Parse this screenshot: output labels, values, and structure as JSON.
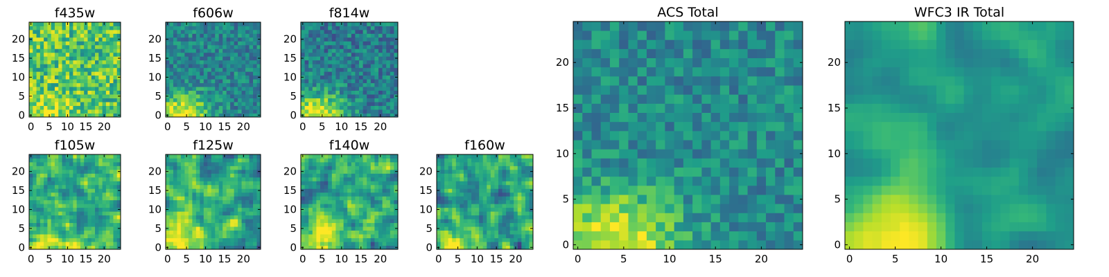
{
  "chart_data": [
    {
      "type": "heatmap",
      "title": "f435w",
      "grid": 25,
      "colormap": "viridis",
      "xticks": [
        "0",
        "5",
        "10",
        "15",
        "20"
      ],
      "yticks": [
        "0",
        "5",
        "10",
        "15",
        "20"
      ],
      "xlim": [
        0,
        24
      ],
      "ylim": [
        0,
        24
      ],
      "value_range": [
        0,
        1
      ],
      "pattern": {
        "seed": 11,
        "mean": 0.72,
        "noise": 0.5,
        "corner": 0.25,
        "smooth": 0
      }
    },
    {
      "type": "heatmap",
      "title": "f606w",
      "grid": 25,
      "colormap": "viridis",
      "xticks": [
        "0",
        "5",
        "10",
        "15",
        "20"
      ],
      "yticks": [
        "0",
        "5",
        "10",
        "15",
        "20"
      ],
      "xlim": [
        0,
        24
      ],
      "ylim": [
        0,
        24
      ],
      "value_range": [
        0,
        1
      ],
      "pattern": {
        "seed": 23,
        "mean": 0.45,
        "noise": 0.35,
        "corner": 0.55,
        "smooth": 0
      }
    },
    {
      "type": "heatmap",
      "title": "f814w",
      "grid": 25,
      "colormap": "viridis",
      "xticks": [
        "0",
        "5",
        "10",
        "15",
        "20"
      ],
      "yticks": [
        "0",
        "5",
        "10",
        "15",
        "20"
      ],
      "xlim": [
        0,
        24
      ],
      "ylim": [
        0,
        24
      ],
      "value_range": [
        0,
        1
      ],
      "pattern": {
        "seed": 37,
        "mean": 0.42,
        "noise": 0.38,
        "corner": 0.6,
        "smooth": 0
      }
    },
    {
      "type": "heatmap",
      "title": "f105w",
      "grid": 25,
      "colormap": "viridis",
      "xticks": [
        "0",
        "5",
        "10",
        "15",
        "20"
      ],
      "yticks": [
        "0",
        "5",
        "10",
        "15",
        "20"
      ],
      "xlim": [
        0,
        24
      ],
      "ylim": [
        0,
        24
      ],
      "value_range": [
        0,
        1
      ],
      "pattern": {
        "seed": 41,
        "mean": 0.62,
        "noise": 0.6,
        "corner": 0.35,
        "smooth": 1
      }
    },
    {
      "type": "heatmap",
      "title": "f125w",
      "grid": 25,
      "colormap": "viridis",
      "xticks": [
        "0",
        "5",
        "10",
        "15",
        "20"
      ],
      "yticks": [
        "0",
        "5",
        "10",
        "15",
        "20"
      ],
      "xlim": [
        0,
        24
      ],
      "ylim": [
        0,
        24
      ],
      "value_range": [
        0,
        1
      ],
      "pattern": {
        "seed": 53,
        "mean": 0.62,
        "noise": 0.55,
        "corner": 0.4,
        "smooth": 1
      }
    },
    {
      "type": "heatmap",
      "title": "f140w",
      "grid": 25,
      "colormap": "viridis",
      "xticks": [
        "0",
        "5",
        "10",
        "15",
        "20"
      ],
      "yticks": [
        "0",
        "5",
        "10",
        "15",
        "20"
      ],
      "xlim": [
        0,
        24
      ],
      "ylim": [
        0,
        24
      ],
      "value_range": [
        0,
        1
      ],
      "pattern": {
        "seed": 67,
        "mean": 0.62,
        "noise": 0.6,
        "corner": 0.4,
        "smooth": 1
      }
    },
    {
      "type": "heatmap",
      "title": "f160w",
      "grid": 25,
      "colormap": "viridis",
      "xticks": [
        "0",
        "5",
        "10",
        "15",
        "20"
      ],
      "yticks": [
        "0",
        "5",
        "10",
        "15",
        "20"
      ],
      "xlim": [
        0,
        24
      ],
      "ylim": [
        0,
        24
      ],
      "value_range": [
        0,
        1
      ],
      "pattern": {
        "seed": 79,
        "mean": 0.58,
        "noise": 0.6,
        "corner": 0.45,
        "smooth": 1
      }
    },
    {
      "type": "heatmap",
      "title": "ACS Total",
      "grid": 25,
      "colormap": "viridis",
      "xticks": [
        "0",
        "5",
        "10",
        "15",
        "20"
      ],
      "yticks": [
        "0",
        "5",
        "10",
        "15",
        "20"
      ],
      "xlim": [
        0,
        24
      ],
      "ylim": [
        0,
        24
      ],
      "value_range": [
        0,
        1
      ],
      "pattern": {
        "seed": 97,
        "mean": 0.47,
        "noise": 0.32,
        "corner": 0.55,
        "smooth": 0
      }
    },
    {
      "type": "heatmap",
      "title": "WFC3 IR Total",
      "grid": 25,
      "colormap": "viridis",
      "xticks": [
        "0",
        "5",
        "10",
        "15",
        "20"
      ],
      "yticks": [
        "0",
        "5",
        "10",
        "15",
        "20"
      ],
      "xlim": [
        0,
        24
      ],
      "ylim": [
        0,
        24
      ],
      "value_range": [
        0,
        1
      ],
      "pattern": {
        "seed": 101,
        "mean": 0.55,
        "noise": 0.4,
        "corner": 0.45,
        "smooth": 2
      }
    }
  ]
}
